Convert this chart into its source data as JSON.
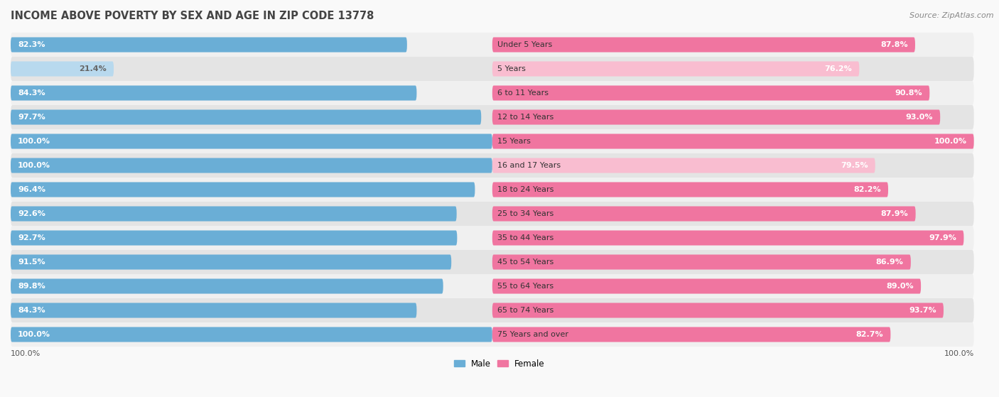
{
  "title": "INCOME ABOVE POVERTY BY SEX AND AGE IN ZIP CODE 13778",
  "source": "Source: ZipAtlas.com",
  "categories": [
    "Under 5 Years",
    "5 Years",
    "6 to 11 Years",
    "12 to 14 Years",
    "15 Years",
    "16 and 17 Years",
    "18 to 24 Years",
    "25 to 34 Years",
    "35 to 44 Years",
    "45 to 54 Years",
    "55 to 64 Years",
    "65 to 74 Years",
    "75 Years and over"
  ],
  "male_values": [
    82.3,
    21.4,
    84.3,
    97.7,
    100.0,
    100.0,
    96.4,
    92.6,
    92.7,
    91.5,
    89.8,
    84.3,
    100.0
  ],
  "female_values": [
    87.8,
    76.2,
    90.8,
    93.0,
    100.0,
    79.5,
    82.2,
    87.9,
    97.9,
    86.9,
    89.0,
    93.7,
    82.7
  ],
  "male_color": "#6aaed6",
  "male_color_light": "#b8d9ee",
  "female_color": "#f075a0",
  "female_color_light": "#f9bdd0",
  "male_label": "Male",
  "female_label": "Female",
  "title_fontsize": 10.5,
  "source_fontsize": 8,
  "label_fontsize": 8,
  "value_fontsize": 8,
  "bottom_label": "100.0%",
  "row_colors": [
    "#f2f2f2",
    "#e8e8e8"
  ],
  "bg_color": "#f9f9f9"
}
